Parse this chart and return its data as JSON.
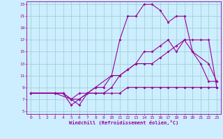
{
  "xlabel": "Windchill (Refroidissement éolien,°C)",
  "bg_color": "#cceeff",
  "grid_color": "#99cccc",
  "line_color": "#990099",
  "xmin": 0,
  "xmax": 23,
  "ymin": 5,
  "ymax": 23,
  "yticks": [
    5,
    7,
    9,
    11,
    13,
    15,
    17,
    19,
    21,
    23
  ],
  "xticks": [
    0,
    1,
    2,
    3,
    4,
    5,
    6,
    7,
    8,
    9,
    10,
    11,
    12,
    13,
    14,
    15,
    16,
    17,
    18,
    19,
    20,
    21,
    22,
    23
  ],
  "line_peak_x": [
    0,
    3,
    5,
    6,
    7,
    8,
    10,
    11,
    12,
    13,
    14,
    15,
    16,
    17,
    18,
    19,
    20,
    22,
    23
  ],
  "line_peak_y": [
    8,
    8,
    7,
    6,
    8,
    9,
    11,
    17,
    21,
    21,
    23,
    23,
    22,
    20,
    21,
    21,
    15,
    13,
    10
  ],
  "line_mid_x": [
    0,
    3,
    4,
    5,
    6,
    7,
    8,
    9,
    10,
    11,
    12,
    13,
    14,
    15,
    16,
    17,
    18,
    19,
    20,
    21,
    22,
    23
  ],
  "line_mid_y": [
    8,
    8,
    8,
    6,
    7,
    8,
    8,
    8,
    9,
    11,
    12,
    13,
    15,
    15,
    16,
    17,
    15,
    17,
    15,
    13,
    10,
    10
  ],
  "line_low_x": [
    0,
    3,
    4,
    5,
    6,
    7,
    8,
    9,
    10,
    11,
    12,
    13,
    14,
    15,
    16,
    17,
    18,
    19,
    20,
    21,
    22,
    23
  ],
  "line_low_y": [
    8,
    8,
    8,
    7,
    8,
    8,
    9,
    9,
    11,
    11,
    12,
    13,
    13,
    13,
    14,
    15,
    16,
    17,
    17,
    17,
    17,
    9
  ],
  "line_flat_x": [
    0,
    3,
    4,
    5,
    6,
    7,
    8,
    9,
    10,
    11,
    12,
    13,
    14,
    15,
    16,
    17,
    18,
    19,
    20,
    21,
    22,
    23
  ],
  "line_flat_y": [
    8,
    8,
    8,
    7,
    7,
    8,
    8,
    8,
    8,
    8,
    9,
    9,
    9,
    9,
    9,
    9,
    9,
    9,
    9,
    9,
    9,
    9
  ]
}
